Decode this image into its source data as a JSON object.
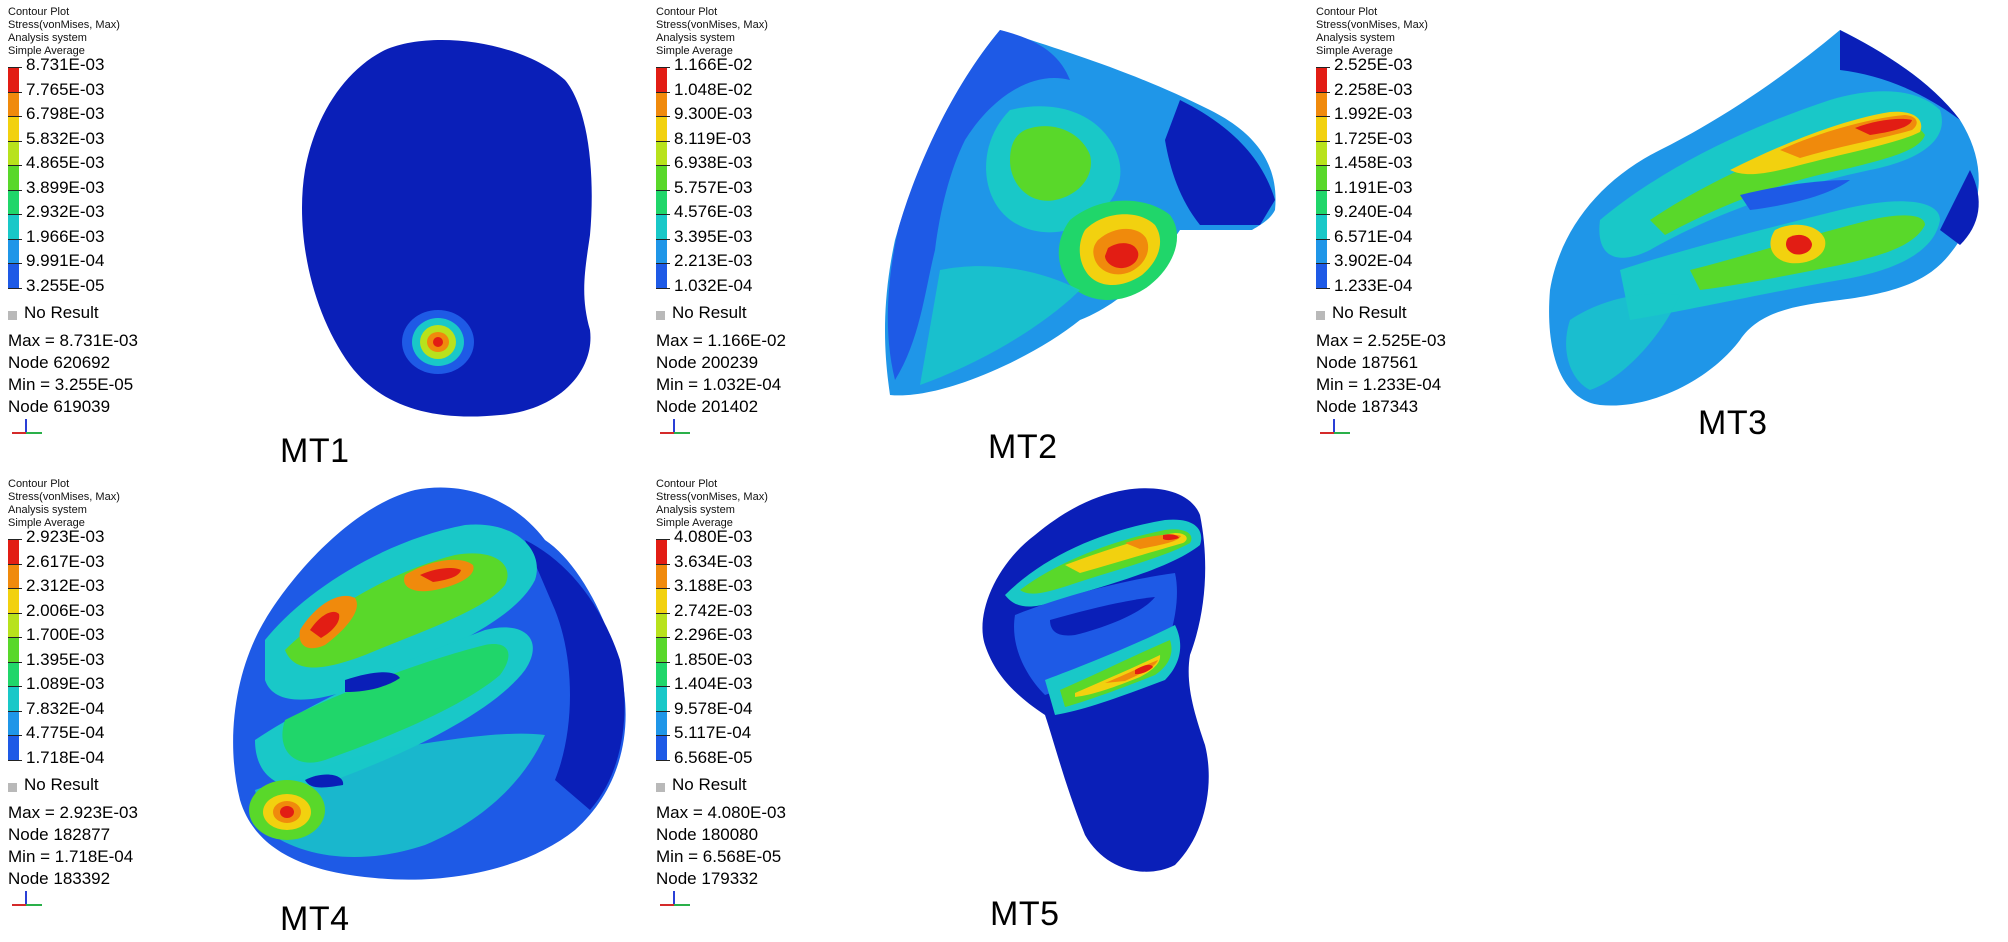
{
  "colors": {
    "scale": [
      "#0a1fb8",
      "#1e5ae6",
      "#1f96e8",
      "#19c8c8",
      "#20d66a",
      "#59d82a",
      "#b8e21c",
      "#f2d10f",
      "#f08a0c",
      "#e21d14"
    ],
    "no_result": "#b9b9b9",
    "background": "#ffffff"
  },
  "panels": [
    {
      "header": [
        "Contour Plot",
        "Stress(vonMises, Max)",
        "Analysis system",
        "Simple Average"
      ],
      "levels": [
        "8.731E-03",
        "7.765E-03",
        "6.798E-03",
        "5.832E-03",
        "4.865E-03",
        "3.899E-03",
        "2.932E-03",
        "1.966E-03",
        "9.991E-04",
        "3.255E-05"
      ],
      "no_result": "No Result",
      "max_line": "Max = 8.731E-03",
      "max_node": "Node 620692",
      "min_line": "Min = 3.255E-05",
      "min_node": "Node 619039",
      "label": "MT1"
    },
    {
      "header": [
        "Contour Plot",
        "Stress(vonMises, Max)",
        "Analysis system",
        "Simple Average"
      ],
      "levels": [
        "1.166E-02",
        "1.048E-02",
        "9.300E-03",
        "8.119E-03",
        "6.938E-03",
        "5.757E-03",
        "4.576E-03",
        "3.395E-03",
        "2.213E-03",
        "1.032E-04"
      ],
      "no_result": "No Result",
      "max_line": "Max = 1.166E-02",
      "max_node": "Node 200239",
      "min_line": "Min = 1.032E-04",
      "min_node": "Node 201402",
      "label": "MT2"
    },
    {
      "header": [
        "Contour Plot",
        "Stress(vonMises, Max)",
        "Analysis system",
        "Simple Average"
      ],
      "levels": [
        "2.525E-03",
        "2.258E-03",
        "1.992E-03",
        "1.725E-03",
        "1.458E-03",
        "1.191E-03",
        "9.240E-04",
        "6.571E-04",
        "3.902E-04",
        "1.233E-04"
      ],
      "no_result": "No Result",
      "max_line": "Max = 2.525E-03",
      "max_node": "Node 187561",
      "min_line": "Min = 1.233E-04",
      "min_node": "Node 187343",
      "label": "MT3"
    },
    {
      "header": [
        "Contour Plot",
        "Stress(vonMises, Max)",
        "Analysis system",
        "Simple Average"
      ],
      "levels": [
        "2.923E-03",
        "2.617E-03",
        "2.312E-03",
        "2.006E-03",
        "1.700E-03",
        "1.395E-03",
        "1.089E-03",
        "7.832E-04",
        "4.775E-04",
        "1.718E-04"
      ],
      "no_result": "No Result",
      "max_line": "Max = 2.923E-03",
      "max_node": "Node 182877",
      "min_line": "Min = 1.718E-04",
      "min_node": "Node 183392",
      "label": "MT4"
    },
    {
      "header": [
        "Contour Plot",
        "Stress(vonMises, Max)",
        "Analysis system",
        "Simple Average"
      ],
      "levels": [
        "4.080E-03",
        "3.634E-03",
        "3.188E-03",
        "2.742E-03",
        "2.296E-03",
        "1.850E-03",
        "1.404E-03",
        "9.578E-04",
        "5.117E-04",
        "6.568E-05"
      ],
      "no_result": "No Result",
      "max_line": "Max = 4.080E-03",
      "max_node": "Node 180080",
      "min_line": "Min = 6.568E-05",
      "min_node": "Node 179332",
      "label": "MT5"
    }
  ]
}
